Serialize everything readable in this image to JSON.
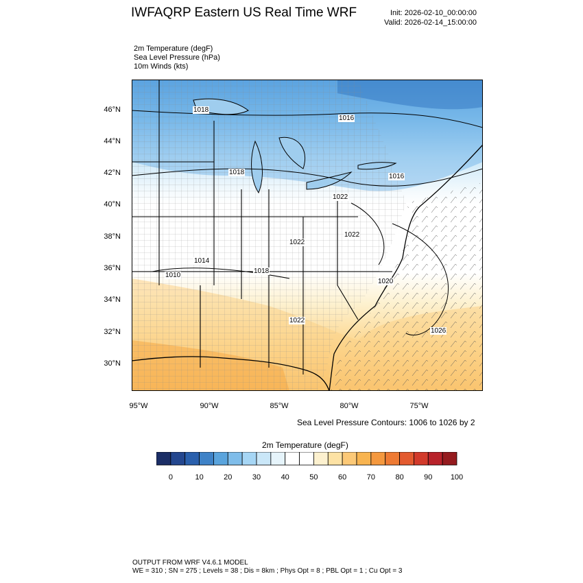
{
  "header": {
    "title": "IWFAQRP Eastern US Real Time WRF",
    "init": "Init: 2026-02-10_00:00:00",
    "valid": "Valid: 2026-02-14_15:00:00"
  },
  "fields": [
    "2m Temperature   (degF)",
    "Sea Level Pressure   (hPa)",
    "10m Winds   (kts)"
  ],
  "map": {
    "lat_labels": [
      "46°N",
      "44°N",
      "42°N",
      "40°N",
      "38°N",
      "36°N",
      "34°N",
      "32°N",
      "30°N"
    ],
    "lon_labels": [
      "95°W",
      "90°W",
      "85°W",
      "80°W",
      "75°W"
    ],
    "pressure_labels": [
      "1018",
      "1016",
      "1018",
      "1022",
      "1016",
      "1022",
      "1022",
      "1014",
      "1010",
      "1018",
      "1020",
      "1022",
      "1026"
    ],
    "colors": {
      "cold": "#4a95d9",
      "cool": "#a6d6f5",
      "neutral": "#ffffff",
      "warm": "#fde7ad",
      "hot": "#f8b450"
    }
  },
  "contour_info": "Sea Level Pressure Contours: 1006 to 1026 by 2",
  "colorbar": {
    "title": "2m Temperature  (degF)",
    "labels": [
      "0",
      "10",
      "20",
      "30",
      "40",
      "50",
      "60",
      "70",
      "80",
      "90",
      "100"
    ],
    "colors": [
      "#1b2e66",
      "#24478f",
      "#2a60ad",
      "#3e82c7",
      "#5aa4dd",
      "#7fbdea",
      "#a6d6f5",
      "#cae7f8",
      "#e6f4fb",
      "#ffffff",
      "#ffffff",
      "#fdf1cf",
      "#fde2a4",
      "#fcc977",
      "#f8b450",
      "#f4983e",
      "#ee7a33",
      "#e35a2f",
      "#d23a2b",
      "#b8222a",
      "#951b1f"
    ]
  },
  "footer": {
    "line1": "OUTPUT FROM WRF V4.6.1 MODEL",
    "line2": "WE = 310 ; SN = 275 ; Levels = 38 ; Dis = 8km ; Phys Opt = 8 ; PBL Opt = 1 ; Cu Opt = 3"
  }
}
